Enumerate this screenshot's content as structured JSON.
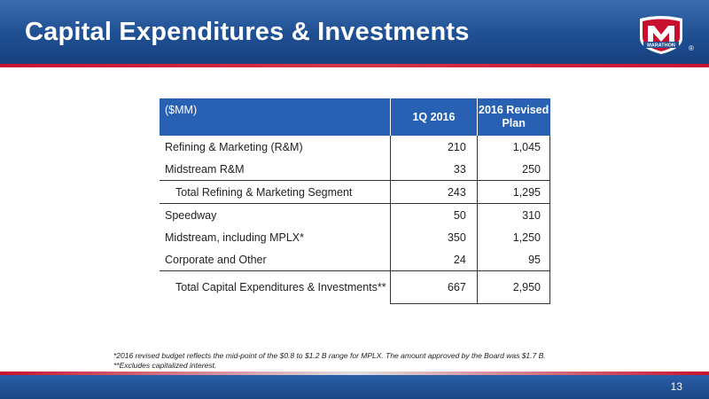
{
  "header": {
    "title": "Capital Expenditures & Investments",
    "logo_text": "MARATHON",
    "logo_reg": "®"
  },
  "table": {
    "headers": [
      "($MM)",
      "1Q 2016",
      "2016 Revised Plan"
    ],
    "rows": [
      {
        "label": "Refining & Marketing (R&M)",
        "q1": "210",
        "plan": "1,045"
      },
      {
        "label": "Midstream R&M",
        "q1": "33",
        "plan": "250"
      },
      {
        "label": "Total Refining & Marketing Segment",
        "q1": "243",
        "plan": "1,295"
      },
      {
        "label": "Speedway",
        "q1": "50",
        "plan": "310"
      },
      {
        "label": "Midstream, including MPLX*",
        "q1": "350",
        "plan": "1,250"
      },
      {
        "label": "Corporate and Other",
        "q1": "24",
        "plan": "95"
      },
      {
        "label": "Total Capital Expenditures & Investments**",
        "q1": "667",
        "plan": "2,950"
      }
    ]
  },
  "footnotes": [
    "*2016 revised budget reflects the mid-point of the $0.8 to $1.2 B range for MPLX. The amount approved by the Board was $1.7 B.",
    "**Excludes capitalized interest."
  ],
  "page_number": "13",
  "colors": {
    "brand_blue": "#1f4f93",
    "table_header_blue": "#2861b4",
    "brand_red": "#c8102e"
  }
}
